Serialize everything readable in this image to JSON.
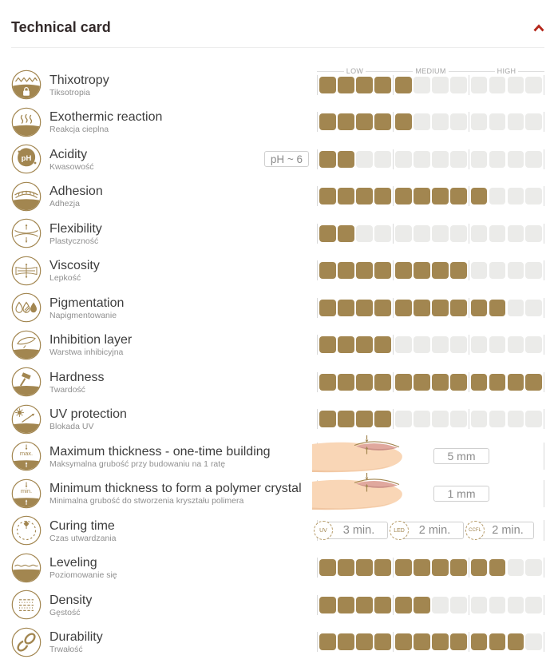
{
  "header": {
    "title": "Technical card"
  },
  "scale": {
    "labels": [
      "LOW",
      "MEDIUM",
      "HIGH"
    ],
    "segments": 12
  },
  "colors": {
    "gold": "#a28650",
    "empty": "#ebebe9",
    "accent_red": "#b5281c"
  },
  "rows": [
    {
      "key": "thixotropy",
      "name": "Thixotropy",
      "subtitle": "Tiksotropia",
      "type": "rating",
      "value": 5,
      "max": 12
    },
    {
      "key": "exothermic-reaction",
      "name": "Exothermic reaction",
      "subtitle": "Reakcja cieplna",
      "type": "rating",
      "value": 5,
      "max": 12
    },
    {
      "key": "acidity",
      "name": "Acidity",
      "subtitle": "Kwasowość",
      "type": "rating",
      "value": 2,
      "max": 12,
      "badge": "pH ~ 6"
    },
    {
      "key": "adhesion",
      "name": "Adhesion",
      "subtitle": "Adhezja",
      "type": "rating",
      "value": 9,
      "max": 12
    },
    {
      "key": "flexibility",
      "name": "Flexibility",
      "subtitle": "Plastyczność",
      "type": "rating",
      "value": 2,
      "max": 12
    },
    {
      "key": "viscosity",
      "name": "Viscosity",
      "subtitle": "Lepkość",
      "type": "rating",
      "value": 8,
      "max": 12
    },
    {
      "key": "pigmentation",
      "name": "Pigmentation",
      "subtitle": "Napigmentowanie",
      "type": "rating",
      "value": 10,
      "max": 12
    },
    {
      "key": "inhibition-layer",
      "name": "Inhibition layer",
      "subtitle": "Warstwa inhibicyjna",
      "type": "rating",
      "value": 4,
      "max": 12
    },
    {
      "key": "hardness",
      "name": "Hardness",
      "subtitle": "Twardość",
      "type": "rating",
      "value": 12,
      "max": 12
    },
    {
      "key": "uv-protection",
      "name": "UV protection",
      "subtitle": "Blokada UV",
      "type": "rating",
      "value": 4,
      "max": 12
    },
    {
      "key": "max-thickness",
      "name": "Maximum thickness - one-time building",
      "subtitle": "Maksymalna grubość przy budowaniu na 1 ratę",
      "type": "thickness",
      "value_label": "5 mm"
    },
    {
      "key": "min-thickness",
      "name": "Minimum thickness to form a polymer crystal",
      "subtitle": "Minimalna grubość do stworzenia kryształu polimera",
      "type": "thickness",
      "value_label": "1 mm"
    },
    {
      "key": "curing-time",
      "name": "Curing time",
      "subtitle": "Czas utwardzania",
      "type": "curing",
      "times": [
        {
          "lamp": "UV",
          "time": "3 min."
        },
        {
          "lamp": "LED",
          "time": "2 min."
        },
        {
          "lamp": "CCFL",
          "time": "2 min."
        }
      ]
    },
    {
      "key": "leveling",
      "name": "Leveling",
      "subtitle": "Poziomowanie się",
      "type": "rating",
      "value": 10,
      "max": 12
    },
    {
      "key": "density",
      "name": "Density",
      "subtitle": "Gęstość",
      "type": "rating",
      "value": 6,
      "max": 12
    },
    {
      "key": "durability",
      "name": "Durability",
      "subtitle": "Trwałość",
      "type": "rating",
      "value": 11,
      "max": 12
    }
  ]
}
